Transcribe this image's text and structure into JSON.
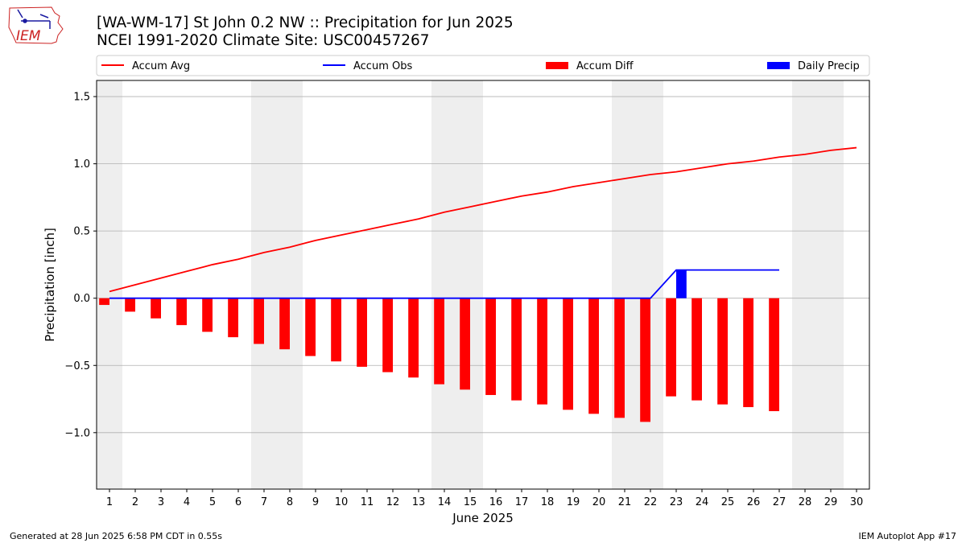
{
  "header": {
    "title_line1": "[WA-WM-17] St John 0.2 NW :: Precipitation for Jun 2025",
    "title_line2": "NCEI 1991-2020 Climate Site: USC00457267",
    "logo_text": "IEM"
  },
  "footer": {
    "generated": "Generated at 28 Jun 2025 6:58 PM CDT in 0.55s",
    "app": "IEM Autoplot App #17"
  },
  "colors": {
    "avg": "#ff0000",
    "obs": "#0000ff",
    "diff": "#ff0000",
    "daily": "#0000ff",
    "weekend_band": "#eeeeee",
    "grid": "#b0b0b0"
  },
  "chart_data": {
    "type": "bar",
    "xlabel": "June 2025",
    "ylabel": "Precipitation [inch]",
    "xlim": [
      0.5,
      30.5
    ],
    "ylim": [
      -1.42,
      1.62
    ],
    "grid": "horizontal",
    "legend_placement": "top",
    "x": [
      1,
      2,
      3,
      4,
      5,
      6,
      7,
      8,
      9,
      10,
      11,
      12,
      13,
      14,
      15,
      16,
      17,
      18,
      19,
      20,
      21,
      22,
      23,
      24,
      25,
      26,
      27,
      28,
      29,
      30
    ],
    "x_tick_labels": [
      "1",
      "2",
      "3",
      "4",
      "5",
      "6",
      "7",
      "8",
      "9",
      "10",
      "11",
      "12",
      "13",
      "14",
      "15",
      "16",
      "17",
      "18",
      "19",
      "20",
      "21",
      "22",
      "23",
      "24",
      "25",
      "26",
      "27",
      "28",
      "29",
      "30"
    ],
    "y_ticks": [
      -1.0,
      -0.5,
      0.0,
      0.5,
      1.0,
      1.5
    ],
    "y_tick_labels": [
      "−1.0",
      "−0.5",
      "0.0",
      "0.5",
      "1.0",
      "1.5"
    ],
    "weekend_bands": [
      [
        0.5,
        1.5
      ],
      [
        6.5,
        8.5
      ],
      [
        13.5,
        15.5
      ],
      [
        20.5,
        22.5
      ],
      [
        27.5,
        29.5
      ]
    ],
    "series": [
      {
        "name": "Accum Avg",
        "kind": "line",
        "x": [
          1,
          2,
          3,
          4,
          5,
          6,
          7,
          8,
          9,
          10,
          11,
          12,
          13,
          14,
          15,
          16,
          17,
          18,
          19,
          20,
          21,
          22,
          23,
          24,
          25,
          26,
          27,
          28,
          29,
          30
        ],
        "values": [
          0.05,
          0.1,
          0.15,
          0.2,
          0.25,
          0.29,
          0.34,
          0.38,
          0.43,
          0.47,
          0.51,
          0.55,
          0.59,
          0.64,
          0.68,
          0.72,
          0.76,
          0.79,
          0.83,
          0.86,
          0.89,
          0.92,
          0.94,
          0.97,
          1.0,
          1.02,
          1.05,
          1.07,
          1.1,
          1.12
        ]
      },
      {
        "name": "Accum Obs",
        "kind": "line",
        "x": [
          1,
          2,
          3,
          4,
          5,
          6,
          7,
          8,
          9,
          10,
          11,
          12,
          13,
          14,
          15,
          16,
          17,
          18,
          19,
          20,
          21,
          22,
          23,
          24,
          25,
          26,
          27
        ],
        "values": [
          0,
          0,
          0,
          0,
          0,
          0,
          0,
          0,
          0,
          0,
          0,
          0,
          0,
          0,
          0,
          0,
          0,
          0,
          0,
          0,
          0,
          0,
          0.21,
          0.21,
          0.21,
          0.21,
          0.21
        ]
      },
      {
        "name": "Accum Diff",
        "kind": "bar",
        "x": [
          1,
          2,
          3,
          4,
          5,
          6,
          7,
          8,
          9,
          10,
          11,
          12,
          13,
          14,
          15,
          16,
          17,
          18,
          19,
          20,
          21,
          22,
          23,
          24,
          25,
          26,
          27
        ],
        "values": [
          -0.05,
          -0.1,
          -0.15,
          -0.2,
          -0.25,
          -0.29,
          -0.34,
          -0.38,
          -0.43,
          -0.47,
          -0.51,
          -0.55,
          -0.59,
          -0.64,
          -0.68,
          -0.72,
          -0.76,
          -0.79,
          -0.83,
          -0.86,
          -0.89,
          -0.92,
          -0.73,
          -0.76,
          -0.79,
          -0.81,
          -0.84
        ]
      },
      {
        "name": "Daily Precip",
        "kind": "bar",
        "x": [
          23
        ],
        "values": [
          0.21
        ]
      }
    ]
  }
}
